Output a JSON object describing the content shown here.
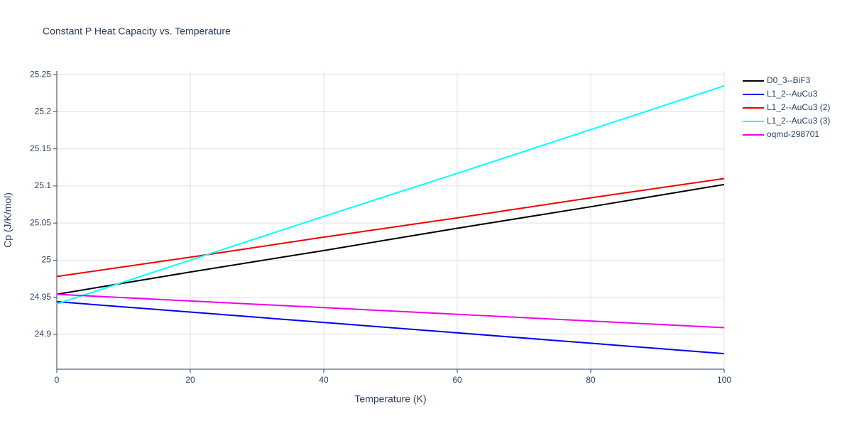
{
  "chart_data": {
    "type": "line",
    "title": "Constant P Heat Capacity vs. Temperature",
    "x_label": "Temperature (K)",
    "y_label": "Cp (J/K/mol)",
    "x": [
      0,
      20,
      40,
      60,
      80,
      100
    ],
    "series": [
      {
        "name": "D0_3--BiF3",
        "color": "#000000",
        "values": [
          24.954,
          24.984,
          25.013,
          25.043,
          25.072,
          25.102
        ]
      },
      {
        "name": "L1_2--AuCu3",
        "color": "#0000ee",
        "values": [
          24.944,
          24.93,
          24.916,
          24.902,
          24.888,
          24.874
        ]
      },
      {
        "name": "L1_2--AuCu3 (2)",
        "color": "#ee0000",
        "values": [
          24.978,
          25.004,
          25.031,
          25.057,
          25.084,
          25.11
        ]
      },
      {
        "name": "L1_2--AuCu3 (3)",
        "color": "#00ffff",
        "values": [
          24.941,
          25.0,
          25.059,
          25.117,
          25.176,
          25.235
        ]
      },
      {
        "name": "oqmd-298701",
        "color": "#ee00ee",
        "values": [
          24.954,
          24.945,
          24.936,
          24.927,
          24.918,
          24.909
        ]
      }
    ],
    "xlim": [
      0,
      100
    ],
    "xticks": [
      0,
      20,
      40,
      60,
      80,
      100
    ],
    "ylim": [
      24.853,
      25.255
    ],
    "yticks": [
      24.9,
      24.95,
      25,
      25.05,
      25.1,
      25.15,
      25.2,
      25.25
    ],
    "grid": true,
    "legend": "top-right"
  }
}
